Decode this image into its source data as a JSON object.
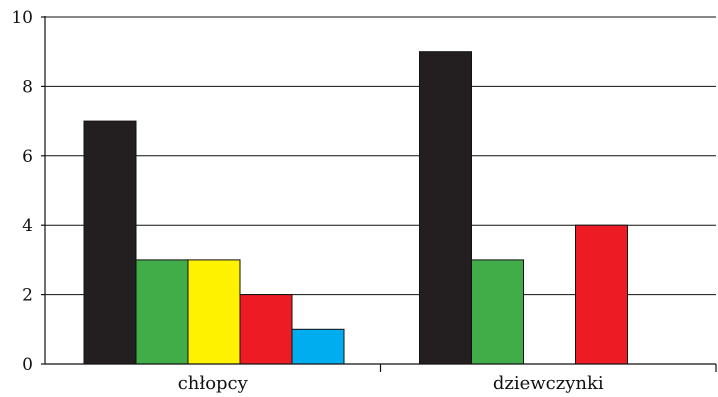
{
  "chart_data": {
    "type": "bar",
    "categories": [
      "chłopcy",
      "dziewczynki"
    ],
    "series": [
      {
        "color": "#231f20",
        "values": [
          7,
          9
        ]
      },
      {
        "color": "#41ad49",
        "values": [
          3,
          3
        ]
      },
      {
        "color": "#fff200",
        "values": [
          3,
          0
        ]
      },
      {
        "color": "#ed1c24",
        "values": [
          2,
          4
        ]
      },
      {
        "color": "#00aeef",
        "values": [
          1,
          0
        ]
      }
    ],
    "ylim": [
      0,
      10
    ],
    "yticks": [
      "0",
      "2",
      "4",
      "6",
      "8",
      "10"
    ],
    "grid": true,
    "legend": "none"
  }
}
